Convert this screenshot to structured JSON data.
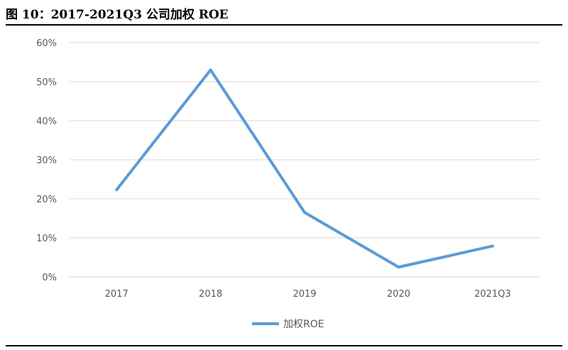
{
  "header": {
    "title": "图 10：2017-2021Q3 公司加权 ROE"
  },
  "chart_data": {
    "type": "line",
    "categories": [
      "2017",
      "2018",
      "2019",
      "2020",
      "2021Q3"
    ],
    "series": [
      {
        "name": "加权ROE",
        "values": [
          22.3,
          53.0,
          16.5,
          2.5,
          7.9
        ],
        "color": "#5b9bd5"
      }
    ],
    "y_ticks": [
      "0%",
      "10%",
      "20%",
      "30%",
      "40%",
      "50%",
      "60%"
    ],
    "ylim": [
      0,
      60
    ],
    "grid": true,
    "legend_position": "bottom"
  }
}
